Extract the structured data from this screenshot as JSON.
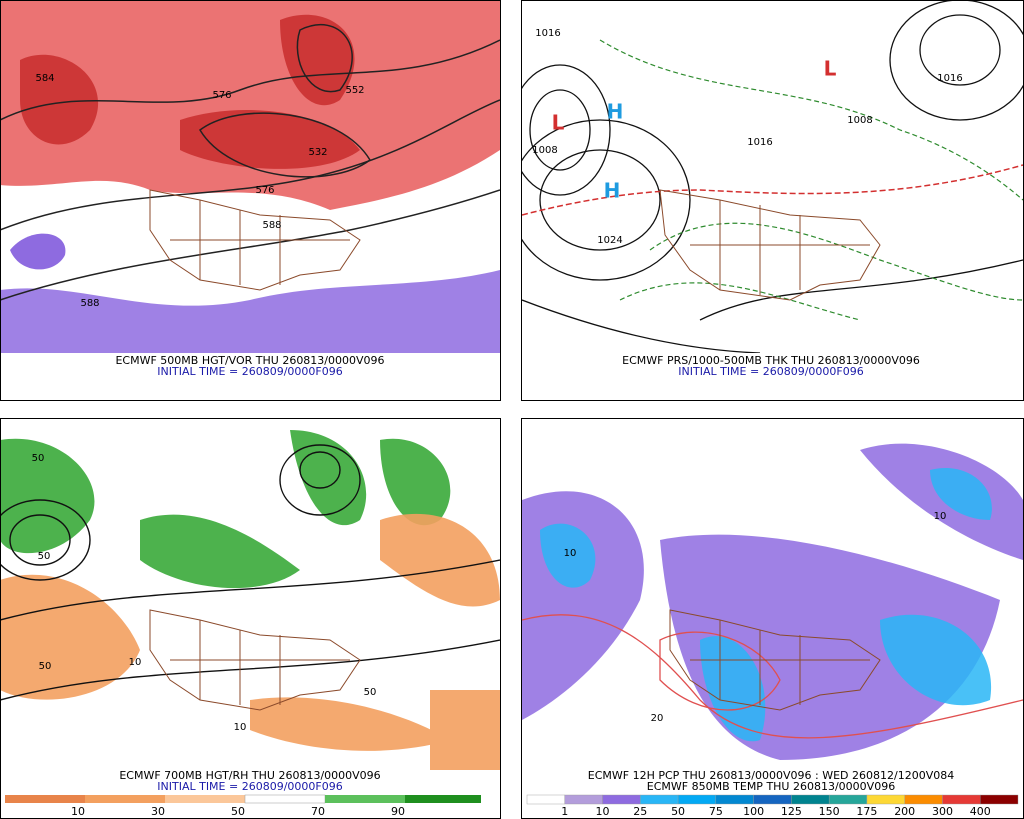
{
  "panels": [
    {
      "captions": [
        "ECMWF 500MB HGT/VOR THU 260813/0000V096",
        "INITIAL TIME = 260809/0000F096"
      ],
      "labels": [
        "584",
        "576",
        "552",
        "532",
        "576",
        "588",
        "588"
      ]
    },
    {
      "captions": [
        "ECMWF PRS/1000-500MB THK THU 260813/0000V096",
        "INITIAL TIME = 260809/0000F096"
      ],
      "labels": [
        "1016",
        "1008",
        "1024",
        "1016",
        "1008",
        "1016",
        "H",
        "H",
        "L",
        "L"
      ]
    },
    {
      "captions": [
        "ECMWF 700MB HGT/RH THU 260813/0000V096",
        "INITIAL TIME = 260809/0000F096"
      ],
      "labels": [
        "50",
        "50",
        "10",
        "50",
        "50",
        "10"
      ],
      "colorbar": [
        10,
        30,
        50,
        70,
        90
      ]
    },
    {
      "captions": [
        "ECMWF 12H PCP THU 260813/0000V096 : WED 260812/1200V084",
        "ECMWF 850MB TEMP THU 260813/0000V096"
      ],
      "labels": [
        "10",
        "20",
        "10"
      ],
      "colorbar": [
        1,
        10,
        25,
        50,
        75,
        100,
        125,
        150,
        175,
        200,
        300,
        400
      ]
    }
  ]
}
